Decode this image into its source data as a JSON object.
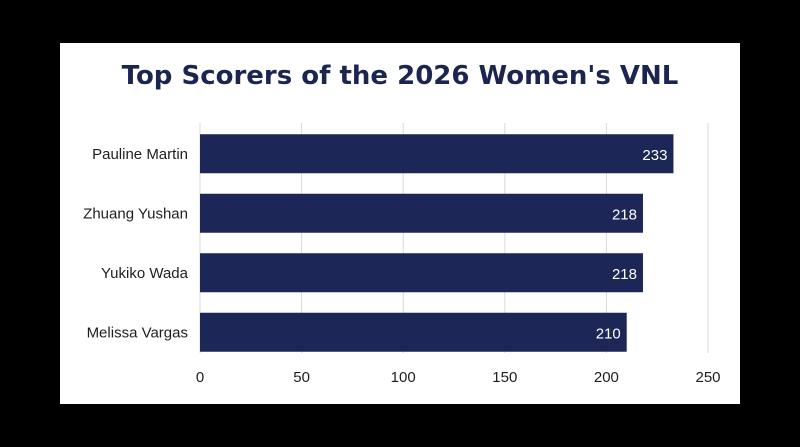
{
  "chart_data": {
    "type": "bar",
    "orientation": "horizontal",
    "title": "Top Scorers of the 2026 Women's VNL",
    "categories": [
      "Pauline Martin",
      "Zhuang Yushan",
      "Yukiko Wada",
      "Melissa Vargas"
    ],
    "values": [
      233,
      218,
      218,
      210
    ],
    "xlim": [
      0,
      250
    ],
    "xticks": [
      0,
      50,
      100,
      150,
      200,
      250
    ],
    "grid": "vertical",
    "xlabel": "",
    "ylabel": ""
  },
  "colors": {
    "bar": "#1c2757",
    "title": "#1b2550",
    "grid": "#d9d9d9",
    "background": "#ffffff",
    "frame": "#000000"
  }
}
